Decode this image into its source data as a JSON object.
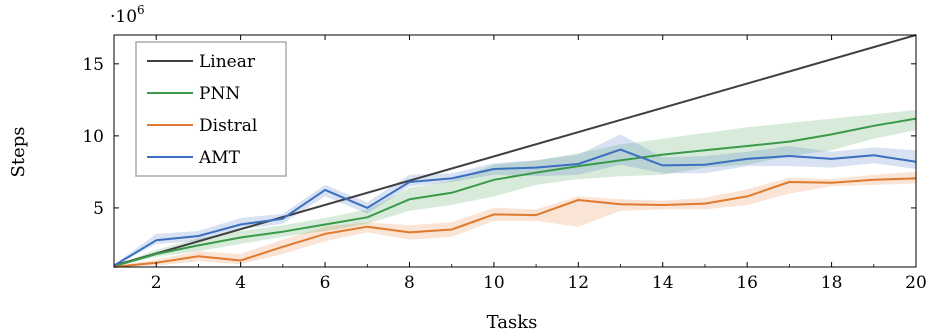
{
  "chart_data": {
    "type": "line",
    "xlabel": "Tasks",
    "ylabel": "Steps",
    "y_multiplier": "·10",
    "y_multiplier_exp": "6",
    "xlim": [
      1,
      20
    ],
    "ylim": [
      0.9,
      17.0
    ],
    "xticks": [
      2,
      4,
      6,
      8,
      10,
      12,
      14,
      16,
      18,
      20
    ],
    "yticks": [
      5,
      10,
      15
    ],
    "grid": false,
    "legend_position": "top-left",
    "x": [
      1,
      2,
      3,
      4,
      5,
      6,
      7,
      8,
      9,
      10,
      11,
      12,
      13,
      14,
      15,
      16,
      17,
      18,
      19,
      20
    ],
    "series": [
      {
        "name": "Linear",
        "color": "#404040",
        "x": [
          1,
          20
        ],
        "values": [
          1.0,
          17.0
        ]
      },
      {
        "name": "PNN",
        "color": "#3a9a4a",
        "values": [
          0.95,
          1.8,
          2.4,
          2.95,
          3.35,
          3.85,
          4.35,
          5.6,
          6.05,
          6.95,
          7.45,
          7.9,
          8.3,
          8.7,
          9.0,
          9.3,
          9.6,
          10.1,
          10.7,
          11.2
        ],
        "lower": [
          0.9,
          1.6,
          2.0,
          2.5,
          3.0,
          3.4,
          3.9,
          4.8,
          5.2,
          5.8,
          6.6,
          7.0,
          7.2,
          7.3,
          7.8,
          8.0,
          8.6,
          9.0,
          9.8,
          10.4
        ],
        "upper": [
          1.0,
          2.1,
          2.9,
          3.4,
          3.8,
          4.3,
          4.9,
          6.4,
          6.9,
          8.0,
          8.3,
          8.8,
          9.4,
          9.8,
          10.2,
          10.6,
          10.9,
          11.2,
          11.5,
          11.8
        ]
      },
      {
        "name": "Distral",
        "color": "#e07a2e",
        "values": [
          0.9,
          1.2,
          1.65,
          1.35,
          2.3,
          3.2,
          3.7,
          3.3,
          3.5,
          4.55,
          4.5,
          5.55,
          5.25,
          5.2,
          5.3,
          5.8,
          6.8,
          6.75,
          6.95,
          7.05
        ],
        "lower": [
          0.85,
          1.0,
          1.3,
          1.1,
          1.8,
          2.7,
          3.3,
          2.8,
          3.0,
          4.1,
          4.1,
          3.7,
          4.8,
          4.9,
          4.9,
          5.2,
          6.0,
          6.5,
          6.6,
          6.7
        ],
        "upper": [
          0.95,
          1.4,
          2.0,
          1.8,
          2.8,
          3.7,
          4.0,
          3.8,
          4.0,
          5.0,
          4.9,
          5.8,
          5.6,
          5.5,
          5.7,
          6.3,
          7.1,
          7.0,
          7.3,
          7.5
        ]
      },
      {
        "name": "AMT",
        "color": "#3b6fc0",
        "values": [
          1.0,
          2.75,
          3.05,
          3.85,
          4.25,
          6.25,
          5.0,
          6.8,
          7.05,
          7.7,
          7.8,
          8.05,
          9.05,
          7.95,
          8.0,
          8.4,
          8.6,
          8.4,
          8.65,
          8.2
        ],
        "lower": [
          0.95,
          2.5,
          2.7,
          3.5,
          3.9,
          5.8,
          4.6,
          6.5,
          6.8,
          7.3,
          7.2,
          7.3,
          8.0,
          7.4,
          7.4,
          7.9,
          7.9,
          7.8,
          8.1,
          7.7
        ],
        "upper": [
          1.05,
          3.2,
          3.4,
          4.3,
          4.6,
          6.6,
          5.4,
          7.3,
          7.4,
          8.1,
          8.3,
          8.7,
          10.1,
          8.5,
          8.6,
          8.9,
          9.3,
          8.9,
          9.2,
          9.0
        ]
      }
    ]
  }
}
